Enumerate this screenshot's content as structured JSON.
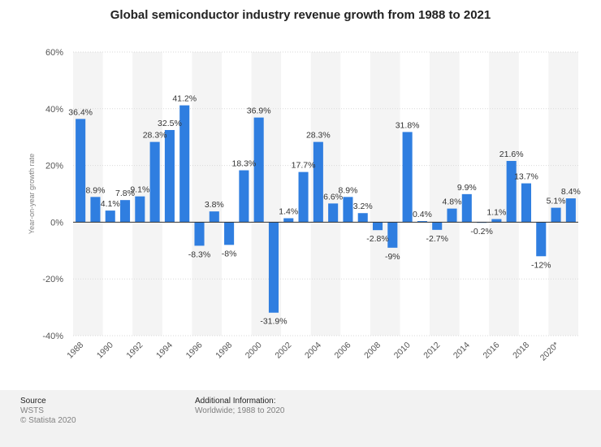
{
  "chart_data": {
    "type": "bar",
    "title": "Global semiconductor industry revenue growth from 1988 to 2021",
    "xlabel": "",
    "ylabel": "Year-on-year growth rate",
    "ylim": [
      -40,
      60
    ],
    "y_ticks": [
      60,
      40,
      20,
      0,
      -20,
      -40
    ],
    "y_tick_labels": [
      "60%",
      "40%",
      "20%",
      "0%",
      "-20%",
      "-40%"
    ],
    "grid": true,
    "bar_color": "#2f7ee0",
    "categories": [
      "1988",
      "1989",
      "1990",
      "1991",
      "1992",
      "1993",
      "1994",
      "1995",
      "1996",
      "1997",
      "1998",
      "1999",
      "2000",
      "2001",
      "2002",
      "2003",
      "2004",
      "2005",
      "2006",
      "2007",
      "2008",
      "2009",
      "2010",
      "2011",
      "2012",
      "2013",
      "2014",
      "2015",
      "2016",
      "2017",
      "2018",
      "2019",
      "2020",
      "2021"
    ],
    "values": [
      36.4,
      8.9,
      4.1,
      7.8,
      9.1,
      28.3,
      32.5,
      41.2,
      -8.3,
      3.8,
      -8,
      18.3,
      36.9,
      -31.9,
      1.4,
      17.7,
      28.3,
      6.6,
      8.9,
      3.2,
      -2.8,
      -9,
      31.8,
      0.4,
      -2.7,
      4.8,
      9.9,
      -0.2,
      1.1,
      21.6,
      13.7,
      -12,
      5.1,
      8.4
    ],
    "data_labels": [
      "36.4%",
      "8.9%",
      "4.1%",
      "7.8%",
      "9.1%",
      "28.3%",
      "32.5%",
      "41.2%",
      "-8.3%",
      "3.8%",
      "-8%",
      "18.3%",
      "36.9%",
      "-31.9%",
      "1.4%",
      "17.7%",
      "28.3%",
      "6.6%",
      "8.9%",
      "3.2%",
      "-2.8%",
      "-9%",
      "31.8%",
      "0.4%",
      "-2.7%",
      "4.8%",
      "9.9%",
      "-0.2%",
      "1.1%",
      "21.6%",
      "13.7%",
      "-12%",
      "5.1%",
      "8.4%"
    ],
    "x_tick_labels": [
      "1988",
      "",
      "1990",
      "",
      "1992",
      "",
      "1994",
      "",
      "1996",
      "",
      "1998",
      "",
      "2000",
      "",
      "2002",
      "",
      "2004",
      "",
      "2006",
      "",
      "2008",
      "",
      "2010",
      "",
      "2012",
      "",
      "2014",
      "",
      "2016",
      "",
      "2018",
      "",
      "2020*",
      ""
    ]
  },
  "footer": {
    "source_heading": "Source",
    "source_name": "WSTS",
    "copyright": "© Statista 2020",
    "info_heading": "Additional Information:",
    "info_text": "Worldwide; 1988 to 2020"
  }
}
